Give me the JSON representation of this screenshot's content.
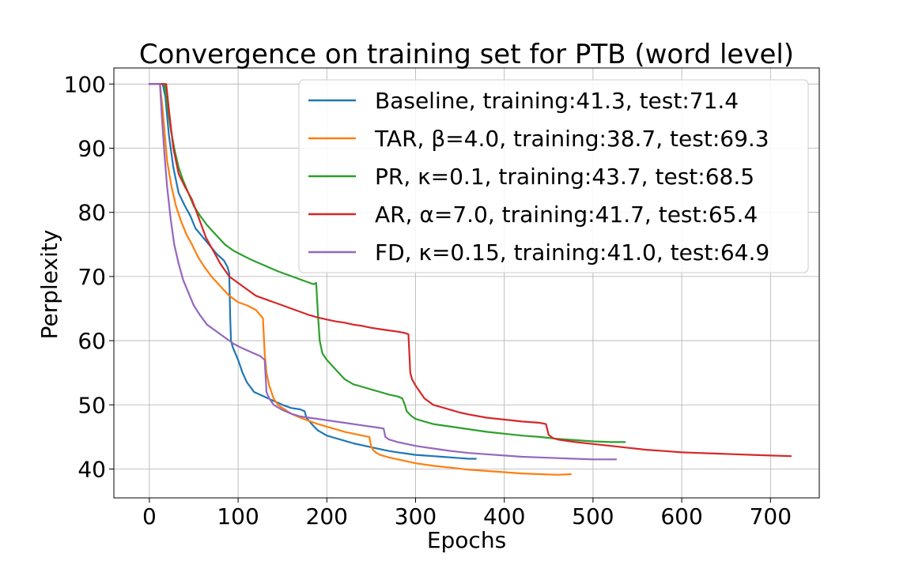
{
  "chart_data": {
    "type": "line",
    "title": "Convergence on training set for PTB (word level)",
    "xlabel": "Epochs",
    "ylabel": "Perplexity",
    "xlim": [
      -40,
      755
    ],
    "ylim": [
      35.5,
      102.5
    ],
    "xticks": [
      0,
      100,
      200,
      300,
      400,
      500,
      600,
      700
    ],
    "yticks": [
      40,
      50,
      60,
      70,
      80,
      90,
      100
    ],
    "grid": true,
    "legend_position": "upper right",
    "series": [
      {
        "name": "Baseline, training:41.3, test:71.4",
        "color": "#1f77b4",
        "x": [
          0,
          15,
          18,
          22,
          27,
          33,
          40,
          46,
          52,
          58,
          64,
          70,
          76,
          80,
          84,
          88,
          90,
          91,
          92,
          94,
          97,
          100,
          105,
          110,
          118,
          126,
          134,
          142,
          150,
          160,
          170,
          175,
          177,
          180,
          185,
          190,
          200,
          210,
          220,
          230,
          240,
          250,
          260,
          270,
          280,
          290,
          300,
          310,
          320,
          330,
          340,
          350,
          360,
          368
        ],
        "y": [
          100,
          100,
          98,
          92,
          87,
          83,
          81,
          79.5,
          77.5,
          76.5,
          75.5,
          74.5,
          73.5,
          73,
          72.5,
          71.5,
          70.5,
          64,
          60,
          59,
          58,
          57,
          55,
          53.5,
          52,
          51.5,
          51,
          50.5,
          50,
          49.5,
          49.3,
          49,
          48,
          47.5,
          46.7,
          46,
          45.2,
          44.8,
          44.4,
          44,
          43.7,
          43.4,
          43.1,
          42.8,
          42.6,
          42.4,
          42.2,
          42.1,
          42,
          41.9,
          41.8,
          41.7,
          41.6,
          41.6
        ]
      },
      {
        "name": "TAR, β=4.0, training:38.7, test:69.3",
        "color": "#ff7f0e",
        "x": [
          0,
          12,
          15,
          20,
          25,
          30,
          36,
          42,
          48,
          55,
          62,
          70,
          80,
          90,
          100,
          110,
          120,
          128,
          130,
          132,
          135,
          140,
          145,
          150,
          160,
          170,
          180,
          190,
          200,
          210,
          220,
          230,
          240,
          248,
          250,
          252,
          255,
          260,
          270,
          280,
          290,
          300,
          320,
          340,
          360,
          380,
          400,
          420,
          440,
          460,
          475
        ],
        "y": [
          100,
          100,
          96,
          88,
          84,
          81,
          78.5,
          76.5,
          75,
          73,
          71.5,
          70,
          68.5,
          67,
          66,
          65.5,
          64.8,
          63.5,
          58,
          55,
          53,
          51,
          50,
          49.5,
          48.6,
          48,
          47.5,
          47,
          46.6,
          46.2,
          45.8,
          45.5,
          45.2,
          45,
          43.5,
          43,
          42.6,
          42.2,
          41.8,
          41.5,
          41.2,
          40.9,
          40.5,
          40.2,
          39.9,
          39.7,
          39.5,
          39.3,
          39.2,
          39.1,
          39.2
        ]
      },
      {
        "name": "PR, κ=0.1, training:43.7, test:68.5",
        "color": "#2ca02c",
        "x": [
          0,
          17,
          20,
          24,
          28,
          33,
          38,
          44,
          50,
          57,
          65,
          75,
          85,
          95,
          105,
          115,
          125,
          135,
          145,
          155,
          165,
          175,
          185,
          188,
          190,
          192,
          195,
          200,
          210,
          220,
          230,
          240,
          250,
          260,
          270,
          280,
          285,
          288,
          290,
          295,
          300,
          310,
          320,
          340,
          360,
          380,
          400,
          420,
          440,
          460,
          480,
          500,
          520,
          536
        ],
        "y": [
          100,
          100,
          97,
          93,
          90,
          87,
          85,
          83,
          81,
          79.5,
          78,
          76.5,
          75,
          74,
          73.3,
          72.6,
          72,
          71.4,
          70.8,
          70.3,
          69.8,
          69.3,
          68.8,
          69,
          64,
          60,
          58,
          57,
          55.5,
          54,
          53.2,
          52.8,
          52.4,
          52,
          51.6,
          51.3,
          51,
          50,
          49,
          48.3,
          47.8,
          47.4,
          47,
          46.6,
          46.2,
          45.8,
          45.5,
          45.2,
          45,
          44.7,
          44.5,
          44.3,
          44.2,
          44.2
        ]
      },
      {
        "name": "AR, α=7.0, training:41.7, test:65.4",
        "color": "#d62728",
        "x": [
          0,
          19,
          22,
          27,
          33,
          40,
          48,
          56,
          64,
          72,
          80,
          90,
          100,
          110,
          120,
          130,
          140,
          150,
          160,
          170,
          180,
          190,
          200,
          210,
          220,
          230,
          240,
          250,
          260,
          270,
          280,
          288,
          292,
          294,
          296,
          300,
          305,
          310,
          320,
          330,
          340,
          350,
          360,
          380,
          400,
          420,
          440,
          447,
          450,
          455,
          460,
          480,
          500,
          520,
          540,
          560,
          580,
          600,
          620,
          640,
          660,
          680,
          700,
          723
        ],
        "y": [
          100,
          100,
          96,
          90,
          86,
          84,
          82,
          79,
          76,
          74,
          72,
          70,
          69,
          68,
          67,
          66.5,
          66,
          65.5,
          65,
          64.5,
          64,
          63.6,
          63.3,
          63,
          62.8,
          62.5,
          62.3,
          62,
          61.8,
          61.6,
          61.4,
          61.2,
          61,
          55,
          54,
          53,
          52,
          51,
          50,
          49.6,
          49.2,
          48.8,
          48.5,
          48,
          47.7,
          47.4,
          47.2,
          47,
          45.3,
          44.8,
          44.6,
          44.2,
          43.9,
          43.6,
          43.3,
          43,
          42.8,
          42.6,
          42.5,
          42.4,
          42.3,
          42.2,
          42.1,
          42
        ]
      },
      {
        "name": "FD, κ=0.15, training:41.0, test:64.9",
        "color": "#9467bd",
        "x": [
          0,
          12,
          14,
          17,
          20,
          24,
          28,
          33,
          38,
          44,
          50,
          57,
          65,
          75,
          85,
          95,
          105,
          115,
          125,
          130,
          132,
          135,
          140,
          150,
          160,
          170,
          180,
          190,
          200,
          210,
          220,
          230,
          240,
          250,
          260,
          264,
          266,
          270,
          280,
          290,
          300,
          310,
          320,
          330,
          340,
          360,
          380,
          400,
          420,
          440,
          460,
          480,
          500,
          526
        ],
        "y": [
          100,
          100,
          95,
          89,
          84,
          79,
          75,
          72,
          69.5,
          67.5,
          65.5,
          64,
          62.5,
          61.5,
          60.5,
          59.5,
          58.8,
          58.2,
          57.6,
          57,
          52,
          51,
          50,
          49.2,
          48.6,
          48.2,
          48,
          47.8,
          47.6,
          47.4,
          47.2,
          47,
          46.8,
          46.6,
          46.4,
          46.3,
          45,
          44.6,
          44.2,
          43.9,
          43.6,
          43.4,
          43.2,
          43,
          42.8,
          42.5,
          42.3,
          42.1,
          41.9,
          41.8,
          41.7,
          41.6,
          41.5,
          41.5
        ]
      }
    ]
  }
}
